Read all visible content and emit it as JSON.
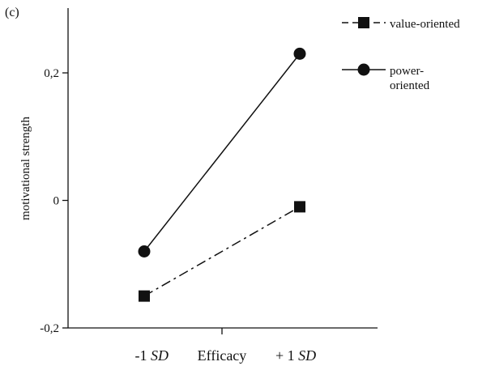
{
  "panel_label": "(c)",
  "chart_data": {
    "type": "line",
    "title": "",
    "xlabel": "Efficacy",
    "ylabel": "motivational strength",
    "categories": [
      {
        "main": "-1 ",
        "italic": "SD"
      },
      {
        "main": "+ 1 ",
        "italic": "SD"
      }
    ],
    "yticks": [
      "-0,2",
      "0",
      "0,2"
    ],
    "ytick_values": [
      -0.2,
      0,
      0.2
    ],
    "ylim": [
      -0.2,
      0.2
    ],
    "grid": false,
    "legend_position": "top-right",
    "series": [
      {
        "name": "value-oriented",
        "legend_lines": [
          "value-oriented"
        ],
        "values": [
          -0.15,
          -0.01
        ],
        "marker": "square",
        "line_style": "dash-dot",
        "color": "#111111"
      },
      {
        "name": "power-oriented",
        "legend_lines": [
          "power-",
          "oriented"
        ],
        "values": [
          -0.08,
          0.23
        ],
        "marker": "circle",
        "line_style": "solid",
        "color": "#111111"
      }
    ]
  }
}
